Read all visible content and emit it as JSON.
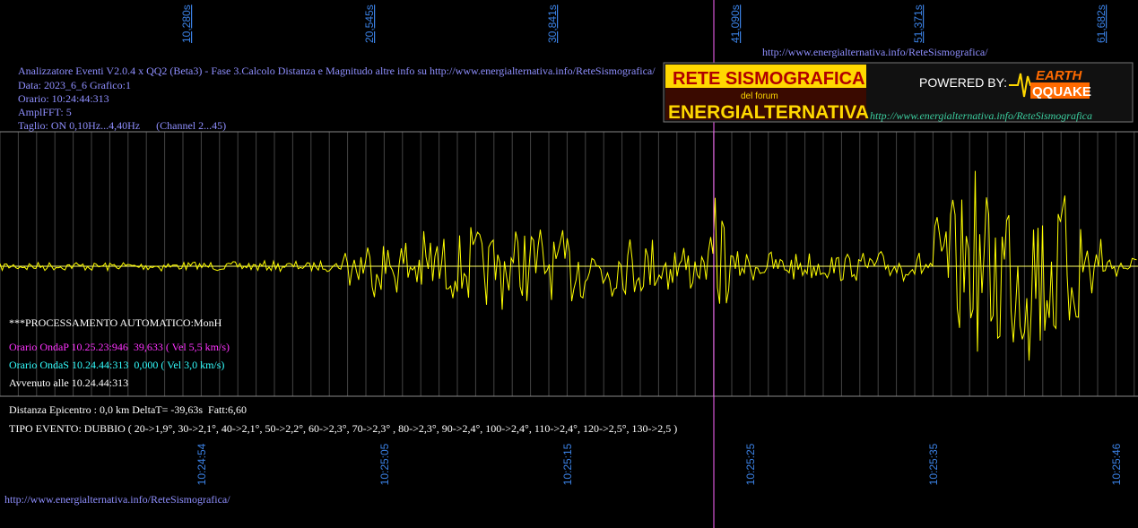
{
  "top_ticks": [
    "10,280s",
    "20,545s",
    "30,841s",
    "41,090s",
    "51,371s",
    "61,682s"
  ],
  "top_url": "http://www.energialternativa.info/ReteSismografica/",
  "info": [
    "Analizzatore Eventi V2.0.4 x QQ2 (Beta3) - Fase 3.Calcolo Distanza e Magnitudo altre info su http://www.energialternativa.info/ReteSismografica/",
    "Data: 2023_6_6 Grafico:1",
    "Orario: 10:24:44:313",
    "AmplFFT: 5",
    "Taglio: ON 0,10Hz...4,40Hz      (Channel 2...45)"
  ],
  "logo": {
    "line1": "RETE SISMOGRAFICA",
    "line2": "del forum",
    "line3": "ENERGIALTERNATIVA",
    "powered": "POWERED BY:",
    "earth": "EARTH",
    "quake": "QQUAKE",
    "url": "http://www.energialternativa.info/ReteSismografica"
  },
  "processing": {
    "title": "***PROCESSAMENTO AUTOMATICO:MonH",
    "onda_p": "Orario OndaP 10.25.23:946  39,633 ( Vel 5,5 km/s)",
    "onda_s": "Orario OndaS 10.24.44:313  0,000 ( Vel 3,0 km/s)",
    "avvenuto": "Avvenuto alle 10.24.44:313"
  },
  "result": {
    "distance": "Distanza Epicentro : 0,0 km DeltaT= -39,63s  Fatt:6,60",
    "type": "TIPO EVENTO: DUBBIO ( 20->1,9°, 30->2,1°, 40->2,1°, 50->2,2°, 60->2,3°, 70->2,3° , 80->2,3°, 90->2,4°, 100->2,4°, 110->2,4°, 120->2,5°, 130->2,5 )"
  },
  "bottom_ticks": [
    "10:24:54",
    "10:25:05",
    "10:25:15",
    "10:25:25",
    "10:25:35",
    "10:25:46"
  ],
  "bottom_url": "http://www.energialternativa.info/ReteSismografica/"
}
